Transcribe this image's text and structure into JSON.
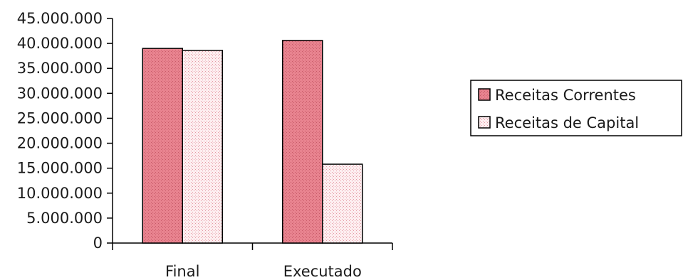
{
  "chart_data": {
    "type": "bar",
    "title": "",
    "xlabel": "",
    "ylabel": "",
    "ylim": [
      0,
      45000000
    ],
    "y_ticks": [
      0,
      5000000,
      10000000,
      15000000,
      20000000,
      25000000,
      30000000,
      35000000,
      40000000,
      45000000
    ],
    "y_tick_labels": [
      "0",
      "5.000.000",
      "10.000.000",
      "15.000.000",
      "20.000.000",
      "25.000.000",
      "30.000.000",
      "35.000.000",
      "40.000.000",
      "45.000.000"
    ],
    "categories": [
      "Final",
      "Executado"
    ],
    "series": [
      {
        "name": "Receitas Correntes",
        "values": [
          39000000,
          40600000
        ],
        "color": "#e8838f",
        "pattern": "dense-dots"
      },
      {
        "name": "Receitas de Capital",
        "values": [
          38600000,
          15800000
        ],
        "color": "#fbe3e6",
        "pattern": "sparse-dots"
      }
    ],
    "grid": false,
    "legend_position": "right"
  }
}
